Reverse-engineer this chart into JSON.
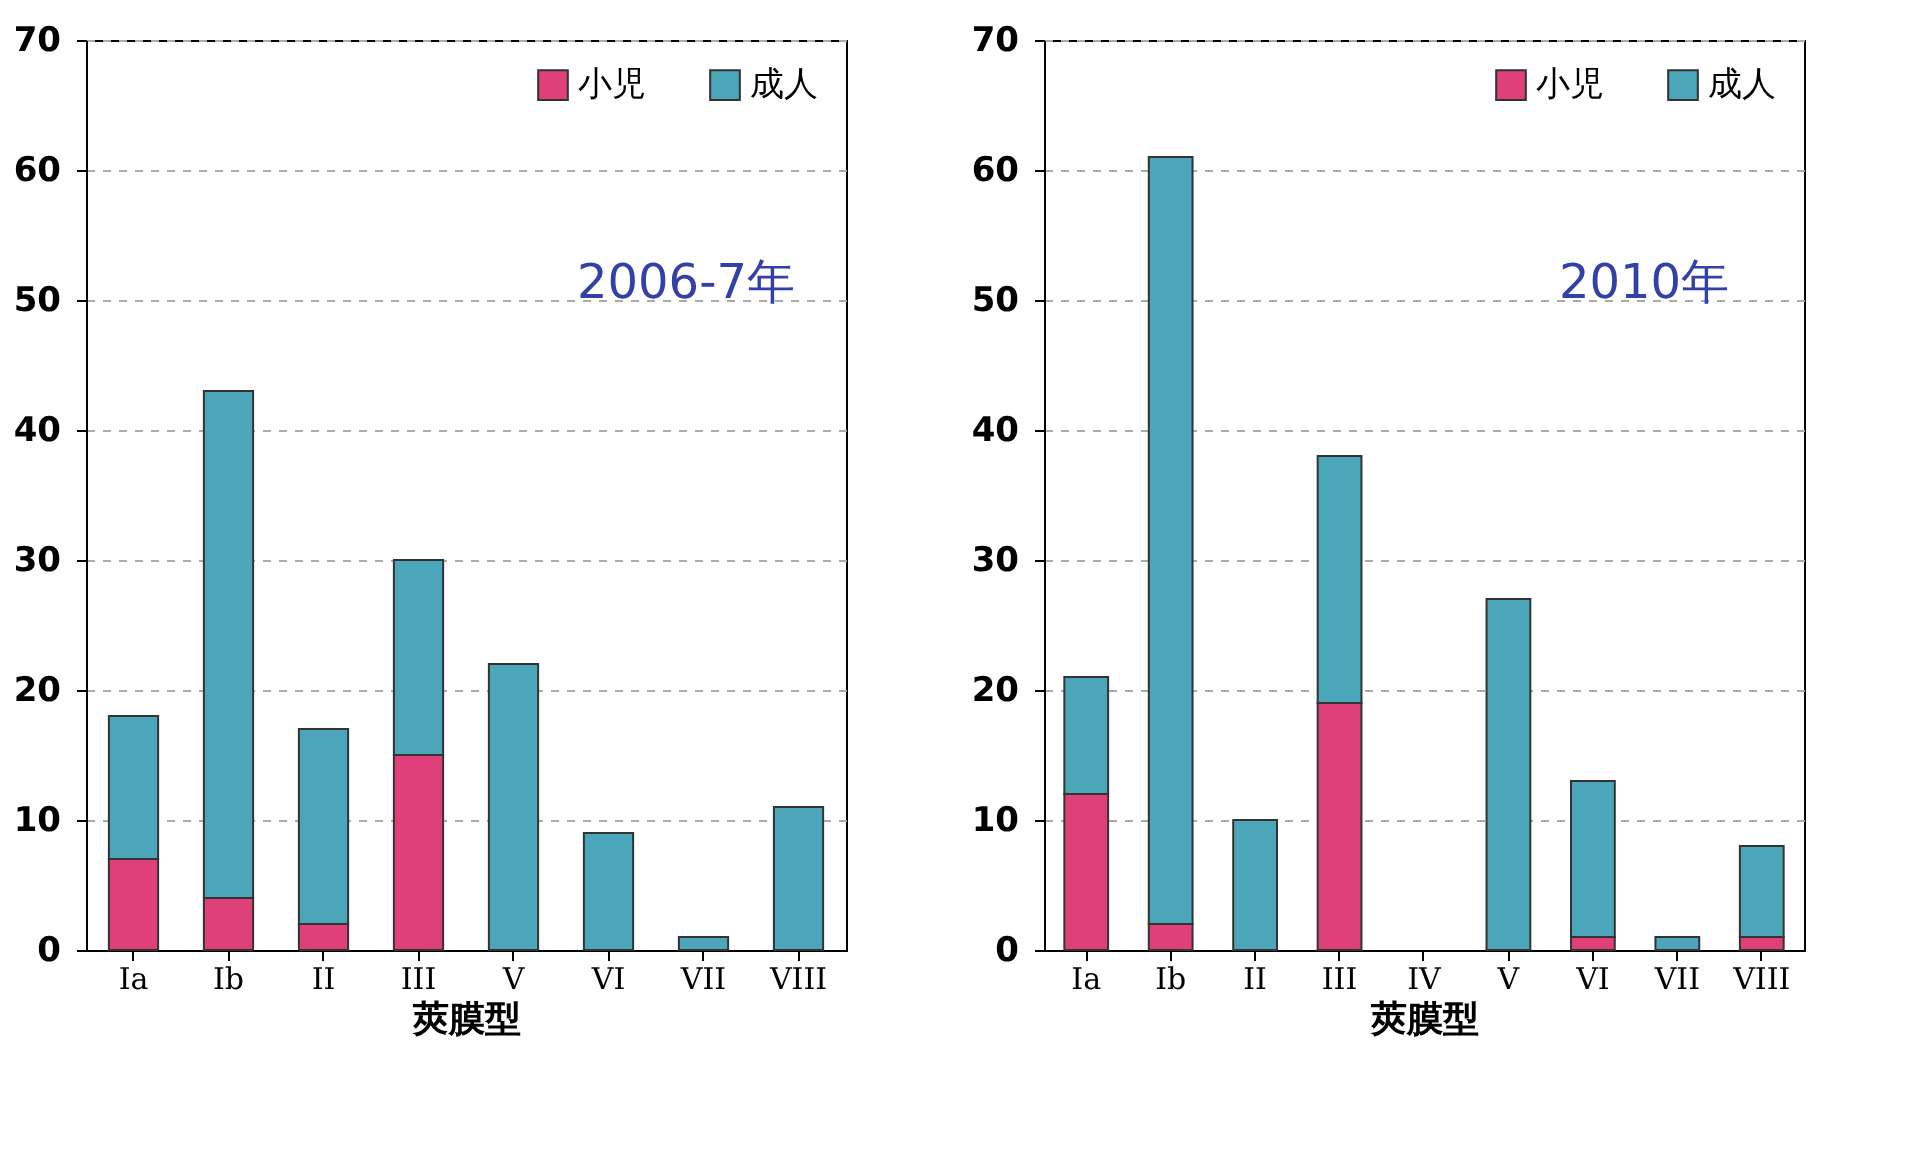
{
  "chart_data": [
    {
      "type": "bar",
      "stacked": true,
      "categories": [
        "Ia",
        "Ib",
        "II",
        "III",
        "V",
        "VI",
        "VII",
        "VIII"
      ],
      "xlabel": "莢膜型",
      "annotations": [
        "2006-7年"
      ],
      "ylim": [
        0,
        70
      ],
      "yticks": [
        0,
        10,
        20,
        30,
        40,
        50,
        60,
        70
      ],
      "grid": "y",
      "legend": "top right",
      "series": [
        {
          "name": "小児",
          "color": "#e0407a",
          "values": [
            7,
            4,
            2,
            15,
            0,
            0,
            0,
            0
          ]
        },
        {
          "name": "成人",
          "color": "#4aa6b8",
          "values": [
            11,
            39,
            15,
            15,
            22,
            9,
            1,
            11
          ]
        }
      ]
    },
    {
      "type": "bar",
      "stacked": true,
      "categories": [
        "Ia",
        "Ib",
        "II",
        "III",
        "IV",
        "V",
        "VI",
        "VII",
        "VIII"
      ],
      "xlabel": "莢膜型",
      "annotations": [
        "2010年"
      ],
      "ylim": [
        0,
        70
      ],
      "yticks": [
        0,
        10,
        20,
        30,
        40,
        50,
        60,
        70
      ],
      "grid": "y",
      "legend": "top right",
      "series": [
        {
          "name": "小児",
          "color": "#e0407a",
          "values": [
            12,
            2,
            0,
            19,
            0,
            0,
            1,
            0,
            1
          ]
        },
        {
          "name": "成人",
          "color": "#4aa6b8",
          "values": [
            9,
            59,
            10,
            19,
            0,
            27,
            12,
            1,
            7
          ]
        }
      ]
    }
  ]
}
